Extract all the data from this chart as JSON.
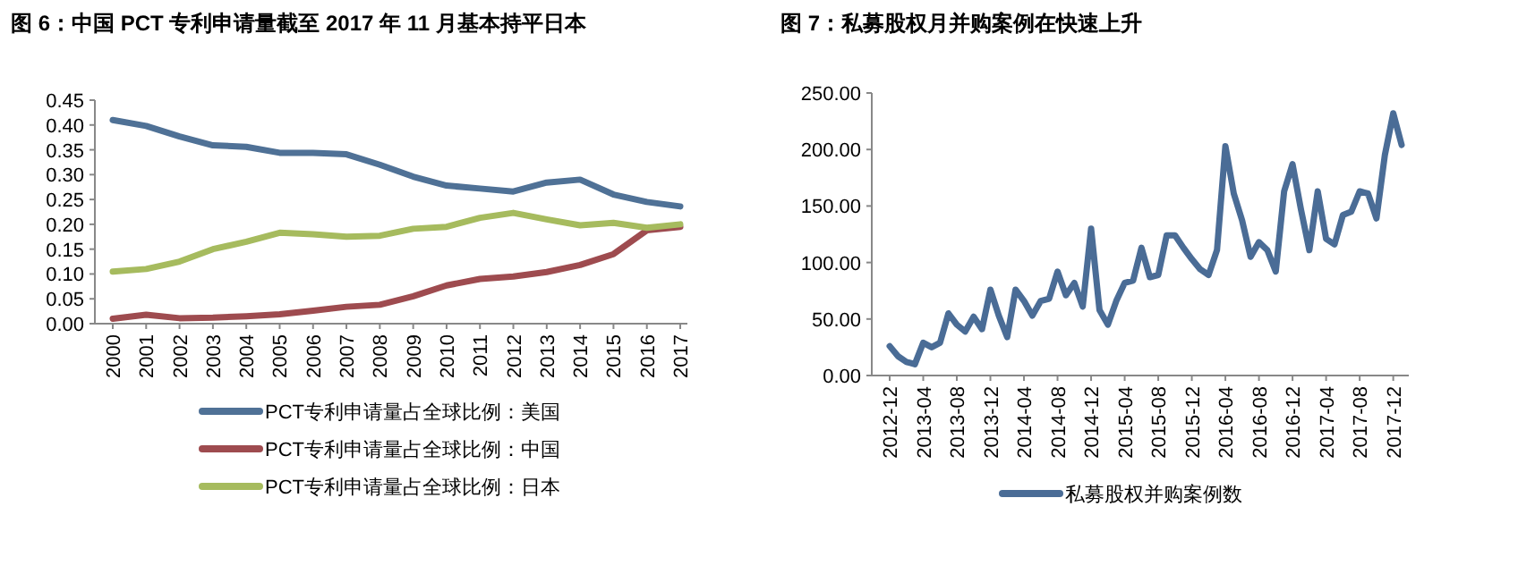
{
  "chart_data": [
    {
      "type": "line",
      "title": "图 6：中国 PCT 专利申请量截至 2017 年 11 月基本持平日本",
      "categories": [
        "2000",
        "2001",
        "2002",
        "2003",
        "2004",
        "2005",
        "2006",
        "2007",
        "2008",
        "2009",
        "2010",
        "2011",
        "2012",
        "2013",
        "2014",
        "2015",
        "2016",
        "2017"
      ],
      "series": [
        {
          "name": "PCT专利申请量占全球比例：美国",
          "color": "#4f7196",
          "values": [
            0.41,
            0.398,
            0.377,
            0.359,
            0.356,
            0.344,
            0.344,
            0.341,
            0.32,
            0.296,
            0.278,
            0.272,
            0.266,
            0.284,
            0.29,
            0.26,
            0.245,
            0.236
          ]
        },
        {
          "name": "PCT专利申请量占全球比例：中国",
          "color": "#9e4b4f",
          "values": [
            0.01,
            0.018,
            0.011,
            0.012,
            0.015,
            0.019,
            0.026,
            0.034,
            0.038,
            0.055,
            0.077,
            0.09,
            0.095,
            0.104,
            0.118,
            0.14,
            0.188,
            0.195
          ]
        },
        {
          "name": "PCT专利申请量占全球比例：日本",
          "color": "#a6bb5e",
          "values": [
            0.105,
            0.11,
            0.125,
            0.15,
            0.165,
            0.183,
            0.18,
            0.175,
            0.177,
            0.191,
            0.195,
            0.213,
            0.223,
            0.21,
            0.198,
            0.203,
            0.193,
            0.2
          ]
        }
      ],
      "ylim": [
        0,
        0.45
      ],
      "yticks": [
        {
          "value": 0,
          "label": "0.00"
        },
        {
          "value": 0.05,
          "label": "0.05"
        },
        {
          "value": 0.1,
          "label": "0.10"
        },
        {
          "value": 0.15,
          "label": "0.15"
        },
        {
          "value": 0.2,
          "label": "0.20"
        },
        {
          "value": 0.25,
          "label": "0.25"
        },
        {
          "value": 0.3,
          "label": "0.30"
        },
        {
          "value": 0.35,
          "label": "0.35"
        },
        {
          "value": 0.4,
          "label": "0.40"
        },
        {
          "value": 0.45,
          "label": "0.45"
        }
      ],
      "legend": "bottom",
      "grid": false
    },
    {
      "type": "line",
      "title": "图 7：私募股权月并购案例在快速上升",
      "categories": [
        "2012-12",
        null,
        null,
        null,
        "2013-04",
        null,
        null,
        null,
        "2013-08",
        null,
        null,
        null,
        "2013-12",
        null,
        null,
        null,
        "2014-04",
        null,
        null,
        null,
        "2014-08",
        null,
        null,
        null,
        "2014-12",
        null,
        null,
        null,
        "2015-04",
        null,
        null,
        null,
        "2015-08",
        null,
        null,
        null,
        "2015-12",
        null,
        null,
        null,
        "2016-04",
        null,
        null,
        null,
        "2016-08",
        null,
        null,
        null,
        "2016-12",
        null,
        null,
        null,
        "2017-04",
        null,
        null,
        null,
        "2017-08",
        null,
        null,
        null,
        "2017-12",
        null
      ],
      "series": [
        {
          "name": "私募股权并购案例数",
          "color": "#4a6c96",
          "values": [
            26,
            17,
            12,
            10,
            29,
            25,
            29,
            55,
            45,
            39,
            52,
            41,
            76,
            53,
            34,
            76,
            66,
            53,
            66,
            68,
            92,
            71,
            82,
            61,
            130,
            58,
            45,
            66,
            82,
            84,
            113,
            87,
            89,
            124,
            124,
            113,
            103,
            94,
            89,
            111,
            203,
            161,
            137,
            105,
            118,
            111,
            92,
            163,
            187,
            147,
            111,
            163,
            121,
            116,
            142,
            145,
            163,
            161,
            139,
            195,
            232,
            204
          ]
        }
      ],
      "ylim": [
        0,
        250
      ],
      "yticks": [
        {
          "value": 0,
          "label": "0.00"
        },
        {
          "value": 50,
          "label": "50.00"
        },
        {
          "value": 100,
          "label": "100.00"
        },
        {
          "value": 150,
          "label": "150.00"
        },
        {
          "value": 200,
          "label": "200.00"
        },
        {
          "value": 250,
          "label": "250.00"
        }
      ],
      "legend": "bottom",
      "grid": false
    }
  ]
}
